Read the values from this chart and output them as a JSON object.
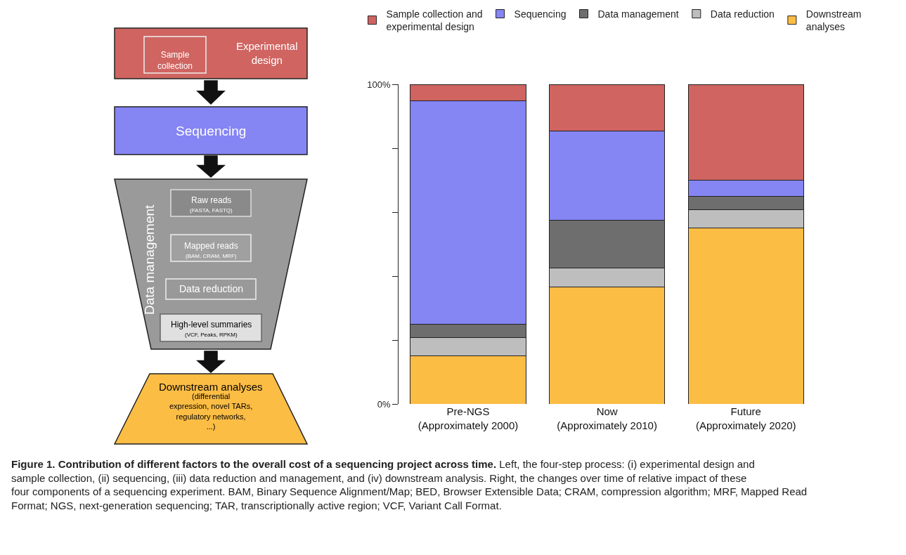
{
  "chart_data": [
    {
      "type": "other",
      "annotations": [
        "Sample collection",
        "Experimental design",
        "Sequencing",
        "Data management",
        "Raw reads",
        "(FASTA, FASTQ)",
        "Mapped reads",
        "(BAM, CRAM, MRF)",
        "Data reduction",
        "High-level summaries",
        "(VCF, Peaks, RPKM)",
        "Downstream analyses",
        "(differential expression, novel TARs, regulatory networks, ...)"
      ]
    },
    {
      "type": "bar",
      "stacked": true,
      "title": "Figure 1. Contribution of different factors to the overall cost of a sequencing project across time.",
      "annotations": [
        "Left, the four-step process: (i) experimental design and sample collection, (ii) sequencing, (iii) data reduction and management, and (iv) downstream analysis. Right, the changes over time of relative impact of these four components of a sequencing experiment. BAM, Binary Sequence Alignment/Map; BED, Browser Extensible Data; CRAM, compression algorithm; MRF, Mapped Read Format; NGS, next-generation sequencing; TAR, transcriptionally active region; VCF, Variant Call Format."
      ],
      "categories": [
        "Pre-NGS\n(Approximately 2000)",
        "Now\n(Approximately 2010)",
        "Future\n(Approximately 2020)"
      ],
      "series": [
        {
          "name": "Downstream\nanalyses",
          "color": "#fcbd45",
          "values": [
            15.0,
            36.7,
            55.1
          ]
        },
        {
          "name": "Data reduction",
          "color": "#bebebe",
          "values": [
            5.7,
            5.8,
            5.6
          ]
        },
        {
          "name": "Data management",
          "color": "#6e6e6e",
          "values": [
            4.3,
            15.1,
            4.3
          ]
        },
        {
          "name": "Sequencing",
          "color": "#8585f4",
          "values": [
            69.9,
            27.8,
            5.1
          ]
        },
        {
          "name": "Sample collection and\nexperimental design",
          "color": "#cf6461",
          "values": [
            5.1,
            14.6,
            29.9
          ]
        }
      ],
      "ylim": [
        0,
        100
      ],
      "yticks": [
        {
          "value": 0,
          "label": "0%"
        },
        {
          "value": 20,
          "label": null
        },
        {
          "value": 40,
          "label": null
        },
        {
          "value": 60,
          "label": null
        },
        {
          "value": 80,
          "label": null
        },
        {
          "value": 100,
          "label": "100%"
        }
      ],
      "legend": "top"
    }
  ]
}
